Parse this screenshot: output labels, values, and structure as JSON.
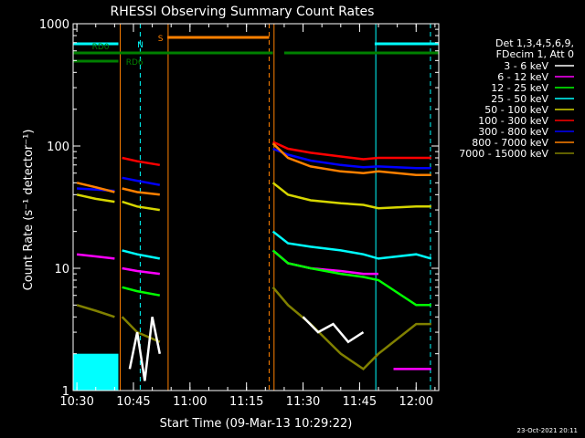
{
  "chart_data": {
    "type": "line",
    "title": "RHESSI Observing Summary Count Rates",
    "xlabel": "Start Time (09-Mar-13 10:29:22)",
    "ylabel": "Count Rate (s⁻¹ detector⁻¹)",
    "x_range_minutes_after_1030": [
      -1,
      96
    ],
    "ylim": [
      1,
      1000
    ],
    "y_scale": "log",
    "x_ticks": [
      {
        "t": 0,
        "label": "10:30"
      },
      {
        "t": 15,
        "label": "10:45"
      },
      {
        "t": 30,
        "label": "11:00"
      },
      {
        "t": 45,
        "label": "11:15"
      },
      {
        "t": 60,
        "label": "11:30"
      },
      {
        "t": 75,
        "label": "11:45"
      },
      {
        "t": 90,
        "label": "12:00"
      }
    ],
    "y_ticks": [
      {
        "v": 1,
        "label": "1"
      },
      {
        "v": 10,
        "label": "10"
      },
      {
        "v": 100,
        "label": "100"
      },
      {
        "v": 1000,
        "label": "1000"
      }
    ],
    "legend": {
      "header": [
        "Det 1,3,4,5,6,9,",
        "FDecim 1, Att 0"
      ],
      "entries": [
        {
          "label": "3 - 6 keV",
          "color": "#ffffff"
        },
        {
          "label": "6 - 12 keV",
          "color": "#ff00ff"
        },
        {
          "label": "12 - 25 keV",
          "color": "#00ff00"
        },
        {
          "label": "25 - 50 keV",
          "color": "#00ffff"
        },
        {
          "label": "50 - 100 keV",
          "color": "#d6d600"
        },
        {
          "label": "100 - 300 keV",
          "color": "#ff0000"
        },
        {
          "label": "300 - 800 keV",
          "color": "#0000ff"
        },
        {
          "label": "800 - 7000 keV",
          "color": "#ff8000"
        },
        {
          "label": "7000 - 15000 keV",
          "color": "#808000"
        }
      ]
    },
    "series": [
      {
        "name": "100 - 300 keV",
        "color": "#ff0000",
        "segments": [
          {
            "x": [
              12,
              16,
              22
            ],
            "y": [
              80,
              75,
              70
            ]
          },
          {
            "x": [
              52,
              56,
              62,
              70,
              76,
              80,
              90,
              94
            ],
            "y": [
              108,
              95,
              88,
              82,
              78,
              80,
              80,
              80
            ]
          }
        ]
      },
      {
        "name": "300 - 800 keV",
        "color": "#0000ff",
        "segments": [
          {
            "x": [
              0,
              5,
              10
            ],
            "y": [
              45,
              44,
              43
            ]
          },
          {
            "x": [
              12,
              16,
              22
            ],
            "y": [
              55,
              52,
              48
            ]
          },
          {
            "x": [
              52,
              56,
              62,
              70,
              76,
              80,
              90,
              94
            ],
            "y": [
              95,
              85,
              76,
              70,
              67,
              68,
              66,
              66
            ]
          }
        ]
      },
      {
        "name": "800 - 7000 keV",
        "color": "#ff8000",
        "segments": [
          {
            "x": [
              0,
              5,
              10
            ],
            "y": [
              50,
              46,
              42
            ]
          },
          {
            "x": [
              12,
              16,
              22
            ],
            "y": [
              45,
              42,
              40
            ]
          },
          {
            "x": [
              52,
              56,
              62,
              70,
              76,
              80,
              90,
              94
            ],
            "y": [
              105,
              80,
              68,
              62,
              60,
              62,
              58,
              58
            ]
          }
        ]
      },
      {
        "name": "50 - 100 keV",
        "color": "#d6d600",
        "segments": [
          {
            "x": [
              0,
              5,
              10
            ],
            "y": [
              40,
              37,
              35
            ]
          },
          {
            "x": [
              12,
              16,
              22
            ],
            "y": [
              35,
              32,
              30
            ]
          },
          {
            "x": [
              52,
              56,
              62,
              70,
              76,
              80,
              90,
              94
            ],
            "y": [
              50,
              40,
              36,
              34,
              33,
              31,
              32,
              32
            ]
          }
        ]
      },
      {
        "name": "25 - 50 keV",
        "color": "#00ffff",
        "segments": [
          {
            "x": [
              12,
              16,
              22
            ],
            "y": [
              14,
              13,
              12
            ]
          },
          {
            "x": [
              52,
              56,
              62,
              70,
              76,
              80,
              90,
              94
            ],
            "y": [
              20,
              16,
              15,
              14,
              13,
              12,
              13,
              12
            ]
          }
        ]
      },
      {
        "name": "6 - 12 keV",
        "color": "#ff00ff",
        "segments": [
          {
            "x": [
              0,
              5,
              10
            ],
            "y": [
              13,
              12.5,
              12
            ]
          },
          {
            "x": [
              12,
              16,
              22
            ],
            "y": [
              10,
              9.5,
              9
            ]
          },
          {
            "x": [
              52,
              56,
              62,
              70,
              76,
              80
            ],
            "y": [
              14,
              11,
              10,
              9.5,
              9,
              9
            ]
          },
          {
            "x": [
              84,
              94
            ],
            "y": [
              1.5,
              1.5
            ]
          }
        ]
      },
      {
        "name": "12 - 25 keV",
        "color": "#00ff00",
        "segments": [
          {
            "x": [
              12,
              16,
              22
            ],
            "y": [
              7,
              6.5,
              6
            ]
          },
          {
            "x": [
              52,
              56,
              62,
              70,
              76,
              80,
              90,
              94
            ],
            "y": [
              14,
              11,
              10,
              9,
              8.5,
              8,
              5,
              5
            ]
          }
        ]
      },
      {
        "name": "7000 - 15000 keV",
        "color": "#808000",
        "segments": [
          {
            "x": [
              0,
              5,
              10
            ],
            "y": [
              5,
              4.5,
              4
            ]
          },
          {
            "x": [
              12,
              16,
              22
            ],
            "y": [
              4,
              3,
              2.5
            ]
          },
          {
            "x": [
              52,
              56,
              62,
              70,
              76,
              80,
              90,
              94
            ],
            "y": [
              7,
              5,
              3.5,
              2,
              1.5,
              2,
              3.5,
              3.5
            ]
          }
        ]
      },
      {
        "name": "3 - 6 keV",
        "color": "#ffffff",
        "segments": [
          {
            "x": [
              14,
              16,
              18,
              20,
              22
            ],
            "y": [
              1.5,
              3,
              1.2,
              4,
              2
            ]
          },
          {
            "x": [
              60,
              64,
              68,
              72,
              76
            ],
            "y": [
              4,
              3,
              3.5,
              2.5,
              3
            ]
          }
        ]
      }
    ],
    "attenuator_bars": [
      {
        "label": "RD0",
        "color": "#008000",
        "row": 3,
        "segments": [
          [
            -1,
            11
          ],
          [
            11,
            52
          ],
          [
            55,
            96
          ]
        ]
      },
      {
        "label": "RD6",
        "color": "#008000",
        "row": 4,
        "segments": [
          [
            -1,
            11
          ]
        ]
      },
      {
        "label": "N",
        "color": "#00ffff",
        "row": 1,
        "segments": [
          [
            -1,
            11
          ],
          [
            79,
            96
          ]
        ]
      },
      {
        "label": "S",
        "color": "#ff8000",
        "row": 2,
        "segments": [
          [
            24,
            51
          ]
        ]
      }
    ],
    "vlines": [
      {
        "t": 11.5,
        "color": "#ff8000",
        "style": "solid"
      },
      {
        "t": 24.2,
        "color": "#ff8000",
        "style": "solid"
      },
      {
        "t": 51,
        "color": "#ff8000",
        "style": "dashed"
      },
      {
        "t": 52.3,
        "color": "#ff8000",
        "style": "solid"
      },
      {
        "t": 16.8,
        "color": "#00ffff",
        "style": "dashed"
      },
      {
        "t": 79.3,
        "color": "#00ffff",
        "style": "solid"
      },
      {
        "t": 93.8,
        "color": "#00ffff",
        "style": "dashed"
      }
    ],
    "cyan_block": {
      "x": [
        -1,
        11
      ],
      "y": [
        1,
        2
      ],
      "color": "#00ffff"
    },
    "footer": "23-Oct-2021 20:11"
  }
}
